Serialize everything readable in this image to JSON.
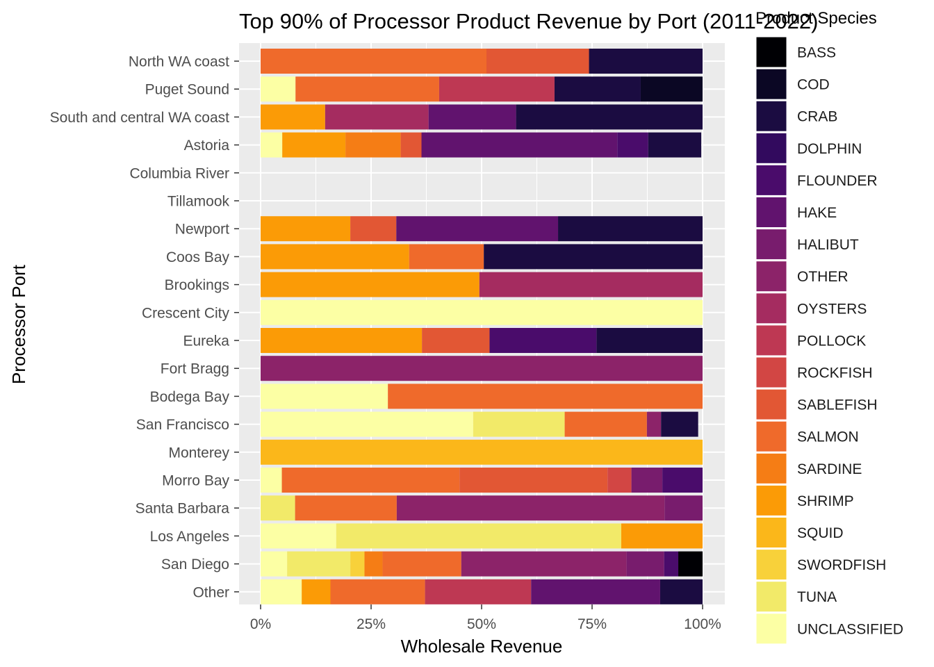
{
  "chart_data": {
    "type": "bar",
    "orientation": "horizontal",
    "stacked": "percent",
    "title": "Top 90% of Processor Product Revenue by Port (2011-2022)",
    "xlabel": "Wholesale Revenue",
    "ylabel": "Processor Port",
    "x_ticks": [
      "0%",
      "25%",
      "50%",
      "75%",
      "100%"
    ],
    "xlim": [
      0,
      100
    ],
    "grid": true,
    "legend": {
      "title": "Product Species",
      "position": "right"
    },
    "categories": [
      "North WA coast",
      "Puget Sound",
      "South and central WA coast",
      "Astoria",
      "Columbia River",
      "Tillamook",
      "Newport",
      "Coos Bay",
      "Brookings",
      "Crescent City",
      "Eureka",
      "Fort Bragg",
      "Bodega Bay",
      "San Francisco",
      "Monterey",
      "Morro Bay",
      "Santa Barbara",
      "Los Angeles",
      "San Diego",
      "Other"
    ],
    "series": [
      {
        "name": "BASS",
        "color": "#000004",
        "values": [
          0,
          0,
          0,
          0,
          0,
          0,
          0,
          0,
          0,
          0,
          0,
          0,
          0,
          0,
          0,
          0,
          0,
          0,
          5.5,
          0
        ]
      },
      {
        "name": "COD",
        "color": "#0b0724",
        "values": [
          0,
          14,
          0,
          0,
          0,
          0,
          0,
          0,
          0,
          0,
          0,
          0,
          0,
          0,
          0,
          0,
          0,
          0,
          0,
          0
        ]
      },
      {
        "name": "CRAB",
        "color": "#1b0c41",
        "values": [
          25.7,
          19.5,
          42.2,
          12,
          0,
          0,
          32.7,
          49.5,
          0,
          0,
          24,
          0,
          0,
          8.4,
          0,
          0,
          0,
          0,
          0,
          9.6
        ]
      },
      {
        "name": "DOLPHIN",
        "color": "#320a5e",
        "values": [
          0,
          0,
          0,
          0,
          0,
          0,
          0,
          0,
          0,
          0,
          0,
          0,
          0,
          0,
          0,
          0,
          0,
          0,
          0,
          0
        ]
      },
      {
        "name": "FLOUNDER",
        "color": "#4a0c6b",
        "values": [
          0,
          0,
          0,
          7,
          0,
          0,
          0,
          0,
          0,
          0,
          24.2,
          0,
          0,
          0,
          0,
          9.1,
          0,
          0,
          3.2,
          0
        ]
      },
      {
        "name": "HAKE",
        "color": "#61136e",
        "values": [
          0,
          0,
          19.8,
          44.3,
          0,
          0,
          36.6,
          0,
          0,
          0,
          0,
          0,
          0,
          0,
          0,
          0,
          0,
          0,
          0,
          29.2
        ]
      },
      {
        "name": "HALIBUT",
        "color": "#781c6d",
        "values": [
          0,
          0,
          0,
          0,
          0,
          0,
          0,
          0,
          0,
          0,
          0,
          0,
          0,
          0,
          0,
          7,
          8.6,
          0,
          8.5,
          0
        ]
      },
      {
        "name": "OTHER",
        "color": "#8c2369",
        "values": [
          0,
          0,
          0,
          0,
          0,
          0,
          0,
          0,
          0,
          0,
          0,
          100,
          0,
          3.2,
          0,
          0,
          60.6,
          0,
          37.4,
          0
        ]
      },
      {
        "name": "OYSTERS",
        "color": "#a52c60",
        "values": [
          0,
          0,
          23.4,
          0,
          0,
          0,
          0,
          0,
          50.5,
          0,
          0,
          0,
          0,
          0,
          0,
          0,
          0,
          0,
          0,
          0
        ]
      },
      {
        "name": "POLLOCK",
        "color": "#be3853",
        "values": [
          0,
          26.1,
          0,
          0,
          0,
          0,
          0,
          0,
          0,
          0,
          0,
          0,
          0,
          0,
          0,
          0,
          0,
          0,
          0,
          24
        ]
      },
      {
        "name": "ROCKFISH",
        "color": "#d24644",
        "values": [
          0,
          0,
          0,
          0,
          0,
          0,
          0,
          0,
          0,
          0,
          0,
          0,
          0,
          0,
          0,
          5.4,
          0,
          0,
          0,
          0
        ]
      },
      {
        "name": "SABLEFISH",
        "color": "#e25734",
        "values": [
          23.2,
          0,
          0,
          4.7,
          0,
          0,
          10.4,
          0,
          0,
          0,
          15.3,
          0,
          0,
          0,
          0,
          33.5,
          0,
          0,
          0,
          0
        ]
      },
      {
        "name": "SALMON",
        "color": "#ef6a2b",
        "values": [
          51.1,
          32.5,
          0,
          0,
          0,
          0,
          0,
          16.9,
          0,
          0,
          0,
          0,
          71.2,
          18.6,
          0,
          40.2,
          23,
          0,
          17.8,
          21.4
        ]
      },
      {
        "name": "SARDINE",
        "color": "#f57d15",
        "values": [
          0,
          0,
          0,
          12.5,
          0,
          0,
          0,
          0,
          0,
          0,
          0,
          0,
          0,
          0,
          0,
          0,
          0,
          0,
          4.1,
          0
        ]
      },
      {
        "name": "SHRIMP",
        "color": "#fb9b06",
        "values": [
          0,
          0,
          14.6,
          14.3,
          0,
          0,
          20.3,
          33.6,
          49.5,
          0,
          36.5,
          0,
          0,
          0,
          0,
          0,
          0,
          18.4,
          0,
          6.5
        ]
      },
      {
        "name": "SQUID",
        "color": "#fbb71a",
        "values": [
          0,
          0,
          0,
          0,
          0,
          0,
          0,
          0,
          0,
          0,
          0,
          0,
          0,
          0,
          100,
          0,
          0,
          0,
          0,
          0
        ]
      },
      {
        "name": "SWORDFISH",
        "color": "#f8d13a",
        "values": [
          0,
          0,
          0,
          0,
          0,
          0,
          0,
          0,
          0,
          0,
          0,
          0,
          0,
          0,
          0,
          0,
          0,
          0,
          3.2,
          0
        ]
      },
      {
        "name": "TUNA",
        "color": "#f2ea69",
        "values": [
          0,
          0,
          0,
          0,
          0,
          0,
          0,
          0,
          0,
          0,
          0,
          0,
          0,
          20.7,
          0,
          0,
          7.8,
          64.5,
          14.3,
          0
        ]
      },
      {
        "name": "UNCLASSIFIED",
        "color": "#fcffa4",
        "values": [
          0,
          7.9,
          0,
          4.9,
          0,
          0,
          0,
          0,
          0,
          100,
          0,
          0,
          28.8,
          48.1,
          0,
          4.8,
          0,
          17.1,
          6,
          9.3
        ]
      }
    ]
  }
}
